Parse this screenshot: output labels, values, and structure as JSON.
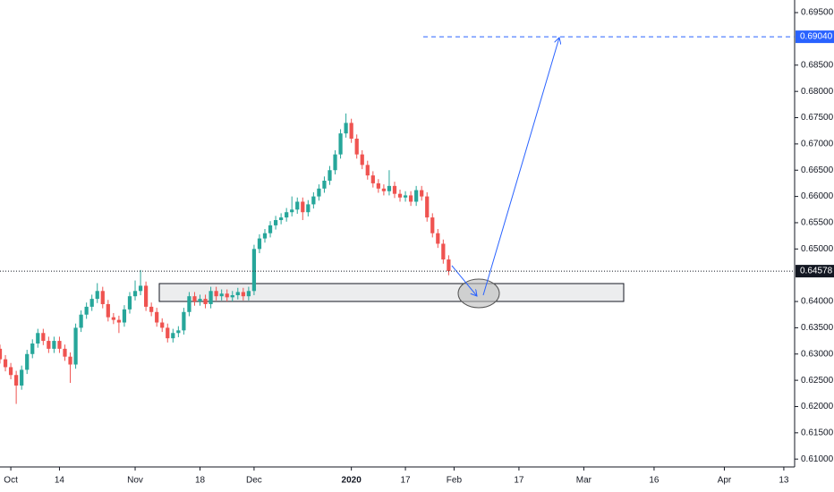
{
  "chart_data": {
    "type": "candlestick",
    "up_color": "#26a69a",
    "down_color": "#ef5350",
    "open": [
      0.631,
      0.629,
      0.6275,
      0.626,
      0.624,
      0.627,
      0.63,
      0.632,
      0.634,
      0.6325,
      0.631,
      0.6325,
      0.631,
      0.6295,
      0.628,
      0.635,
      0.6375,
      0.639,
      0.6405,
      0.642,
      0.6395,
      0.637,
      0.6365,
      0.636,
      0.6385,
      0.641,
      0.642,
      0.643,
      0.639,
      0.638,
      0.636,
      0.635,
      0.633,
      0.634,
      0.6345,
      0.638,
      0.641,
      0.64,
      0.6405,
      0.6395,
      0.642,
      0.641,
      0.6415,
      0.6408,
      0.6412,
      0.6418,
      0.641,
      0.642,
      0.65,
      0.652,
      0.653,
      0.6545,
      0.6555,
      0.656,
      0.657,
      0.6575,
      0.659,
      0.657,
      0.6585,
      0.66,
      0.6615,
      0.663,
      0.665,
      0.668,
      0.672,
      0.674,
      0.671,
      0.668,
      0.666,
      0.664,
      0.6625,
      0.6615,
      0.661,
      0.662,
      0.6605,
      0.6598,
      0.6602,
      0.659,
      0.6612,
      0.66,
      0.656,
      0.653,
      0.651,
      0.648
    ],
    "high": [
      0.6318,
      0.6298,
      0.6283,
      0.6268,
      0.6278,
      0.6308,
      0.6328,
      0.6348,
      0.6348,
      0.6333,
      0.6333,
      0.6333,
      0.6318,
      0.6303,
      0.6358,
      0.6383,
      0.6398,
      0.6413,
      0.6435,
      0.6428,
      0.6403,
      0.6378,
      0.6373,
      0.6393,
      0.6418,
      0.644,
      0.646,
      0.6438,
      0.6398,
      0.6388,
      0.6368,
      0.6358,
      0.6348,
      0.6353,
      0.6388,
      0.6418,
      0.6418,
      0.6413,
      0.6413,
      0.6428,
      0.6428,
      0.6423,
      0.6423,
      0.642,
      0.6426,
      0.6426,
      0.6428,
      0.6508,
      0.6528,
      0.6538,
      0.6553,
      0.6563,
      0.6568,
      0.6578,
      0.66,
      0.6598,
      0.6598,
      0.6593,
      0.6608,
      0.6623,
      0.6638,
      0.6658,
      0.6688,
      0.6728,
      0.6758,
      0.6748,
      0.6718,
      0.6688,
      0.6668,
      0.6648,
      0.6633,
      0.6623,
      0.665,
      0.6628,
      0.6613,
      0.661,
      0.661,
      0.662,
      0.662,
      0.6608,
      0.6568,
      0.6538,
      0.6518,
      0.6488
    ],
    "low": [
      0.6282,
      0.6267,
      0.6252,
      0.6205,
      0.6232,
      0.6262,
      0.6292,
      0.6312,
      0.6317,
      0.6302,
      0.6302,
      0.6302,
      0.6287,
      0.6245,
      0.6272,
      0.6342,
      0.6367,
      0.6382,
      0.6397,
      0.6387,
      0.6362,
      0.6357,
      0.634,
      0.6352,
      0.6377,
      0.6402,
      0.6412,
      0.6382,
      0.6372,
      0.6352,
      0.6342,
      0.6322,
      0.6322,
      0.6332,
      0.6337,
      0.6372,
      0.6392,
      0.6392,
      0.6387,
      0.6387,
      0.6402,
      0.6402,
      0.64,
      0.64,
      0.6404,
      0.6402,
      0.6402,
      0.6412,
      0.6492,
      0.6512,
      0.6522,
      0.6537,
      0.6547,
      0.6552,
      0.6562,
      0.6567,
      0.6555,
      0.6562,
      0.6577,
      0.6592,
      0.6607,
      0.6622,
      0.6642,
      0.6672,
      0.6712,
      0.6702,
      0.6672,
      0.6652,
      0.6632,
      0.6617,
      0.6607,
      0.6602,
      0.6602,
      0.6597,
      0.659,
      0.659,
      0.6582,
      0.6582,
      0.6592,
      0.6552,
      0.6522,
      0.6502,
      0.6472,
      0.645
    ],
    "close": [
      0.629,
      0.6275,
      0.626,
      0.624,
      0.627,
      0.63,
      0.632,
      0.634,
      0.6325,
      0.631,
      0.6325,
      0.631,
      0.6295,
      0.628,
      0.635,
      0.6375,
      0.639,
      0.6405,
      0.642,
      0.6395,
      0.637,
      0.6365,
      0.636,
      0.6385,
      0.641,
      0.642,
      0.643,
      0.639,
      0.638,
      0.636,
      0.635,
      0.633,
      0.634,
      0.6345,
      0.638,
      0.641,
      0.64,
      0.6405,
      0.6395,
      0.642,
      0.641,
      0.6415,
      0.6408,
      0.6412,
      0.6418,
      0.641,
      0.642,
      0.65,
      0.652,
      0.653,
      0.6545,
      0.6555,
      0.656,
      0.657,
      0.6575,
      0.659,
      0.657,
      0.6585,
      0.66,
      0.6615,
      0.663,
      0.665,
      0.668,
      0.672,
      0.674,
      0.671,
      0.668,
      0.666,
      0.664,
      0.6625,
      0.6615,
      0.661,
      0.662,
      0.6605,
      0.6598,
      0.6602,
      0.659,
      0.6612,
      0.66,
      0.656,
      0.653,
      0.651,
      0.648,
      0.6458
    ],
    "xlim": [
      0,
      147
    ],
    "xticks": [
      {
        "value": 2,
        "label": "Oct"
      },
      {
        "value": 11,
        "label": "14"
      },
      {
        "value": 25,
        "label": "Nov"
      },
      {
        "value": 37,
        "label": "18"
      },
      {
        "value": 47,
        "label": "Dec"
      },
      {
        "value": 65,
        "label": "2020"
      },
      {
        "value": 75,
        "label": "17"
      },
      {
        "value": 84,
        "label": "Feb"
      },
      {
        "value": 96,
        "label": "17"
      },
      {
        "value": 108,
        "label": "Mar"
      },
      {
        "value": 121,
        "label": "16"
      },
      {
        "value": 134,
        "label": "Apr"
      },
      {
        "value": 145,
        "label": "13"
      }
    ],
    "ylim": [
      0.6085,
      0.6974
    ],
    "yticks": [
      {
        "value": 0.695,
        "label": "0.69500"
      },
      {
        "value": 0.685,
        "label": "0.68500"
      },
      {
        "value": 0.68,
        "label": "0.68000"
      },
      {
        "value": 0.675,
        "label": "0.67500"
      },
      {
        "value": 0.67,
        "label": "0.67000"
      },
      {
        "value": 0.665,
        "label": "0.66500"
      },
      {
        "value": 0.66,
        "label": "0.66000"
      },
      {
        "value": 0.655,
        "label": "0.65500"
      },
      {
        "value": 0.65,
        "label": "0.65000"
      },
      {
        "value": 0.64,
        "label": "0.64000"
      },
      {
        "value": 0.635,
        "label": "0.63500"
      },
      {
        "value": 0.63,
        "label": "0.63000"
      },
      {
        "value": 0.625,
        "label": "0.62500"
      },
      {
        "value": 0.62,
        "label": "0.62000"
      },
      {
        "value": 0.615,
        "label": "0.61500"
      },
      {
        "value": 0.61,
        "label": "0.61000"
      }
    ],
    "price_lines": [
      {
        "value": 0.64578,
        "label": "0.64578",
        "color": "#131722",
        "style": "dotted"
      },
      {
        "value": 0.6904,
        "label": "0.69040",
        "color": "#2962ff",
        "style": "dashed"
      }
    ],
    "grid": false
  }
}
